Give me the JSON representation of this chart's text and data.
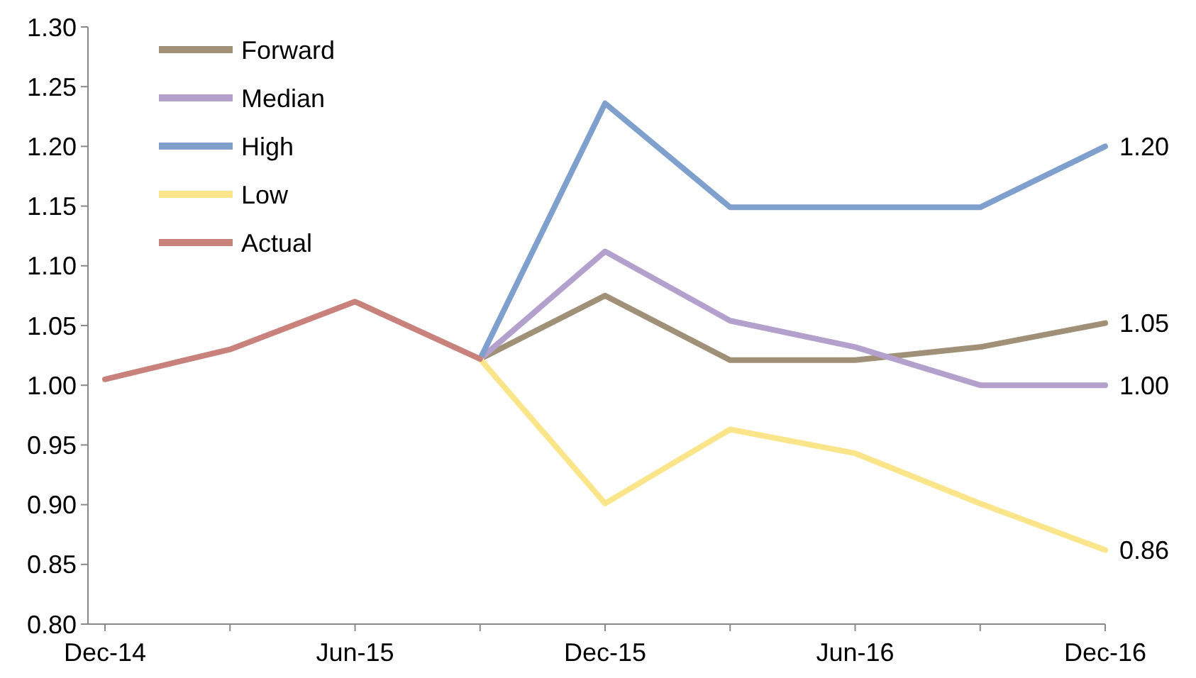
{
  "chart_data": {
    "type": "line",
    "categories": [
      "Dec-14",
      null,
      "Jun-15",
      null,
      "Dec-15",
      null,
      "Jun-16",
      null,
      "Dec-16"
    ],
    "ylim": [
      0.8,
      1.3
    ],
    "yticks": [
      {
        "value": 0.8,
        "label": "0.80"
      },
      {
        "value": 0.85,
        "label": "0.85"
      },
      {
        "value": 0.9,
        "label": "0.90"
      },
      {
        "value": 0.95,
        "label": "0.95"
      },
      {
        "value": 1.0,
        "label": "1.00"
      },
      {
        "value": 1.05,
        "label": "1.05"
      },
      {
        "value": 1.1,
        "label": "1.10"
      },
      {
        "value": 1.15,
        "label": "1.15"
      },
      {
        "value": 1.2,
        "label": "1.20"
      },
      {
        "value": 1.25,
        "label": "1.25"
      },
      {
        "value": 1.3,
        "label": "1.30"
      }
    ],
    "grid": false,
    "legend": "top left",
    "line_style": "solid",
    "marker": "none",
    "series": [
      {
        "name": "Forward",
        "color": "#a09077",
        "values": [
          null,
          null,
          null,
          1.022,
          1.075,
          1.021,
          1.021,
          1.032,
          1.052
        ],
        "value_labels": [
          null,
          null,
          null,
          null,
          null,
          null,
          null,
          null,
          "1.05"
        ]
      },
      {
        "name": "Median",
        "color": "#b4a0cc",
        "values": [
          null,
          null,
          null,
          1.022,
          1.112,
          1.054,
          1.032,
          1.0,
          1.0
        ],
        "value_labels": [
          null,
          null,
          null,
          null,
          null,
          null,
          null,
          null,
          "1.00"
        ]
      },
      {
        "name": "High",
        "color": "#7f9fcc",
        "values": [
          null,
          null,
          null,
          1.022,
          1.236,
          1.149,
          1.149,
          1.149,
          1.2
        ],
        "value_labels": [
          null,
          null,
          null,
          null,
          null,
          null,
          null,
          null,
          "1.20"
        ]
      },
      {
        "name": "Low",
        "color": "#fbe58a",
        "values": [
          null,
          null,
          null,
          1.022,
          0.901,
          0.963,
          0.943,
          0.901,
          0.862
        ],
        "value_labels": [
          null,
          null,
          null,
          null,
          null,
          null,
          null,
          null,
          "0.86"
        ]
      },
      {
        "name": "Actual",
        "color": "#c9827b",
        "values": [
          1.005,
          1.03,
          1.07,
          1.022,
          null,
          null,
          null,
          null,
          null
        ]
      }
    ]
  }
}
